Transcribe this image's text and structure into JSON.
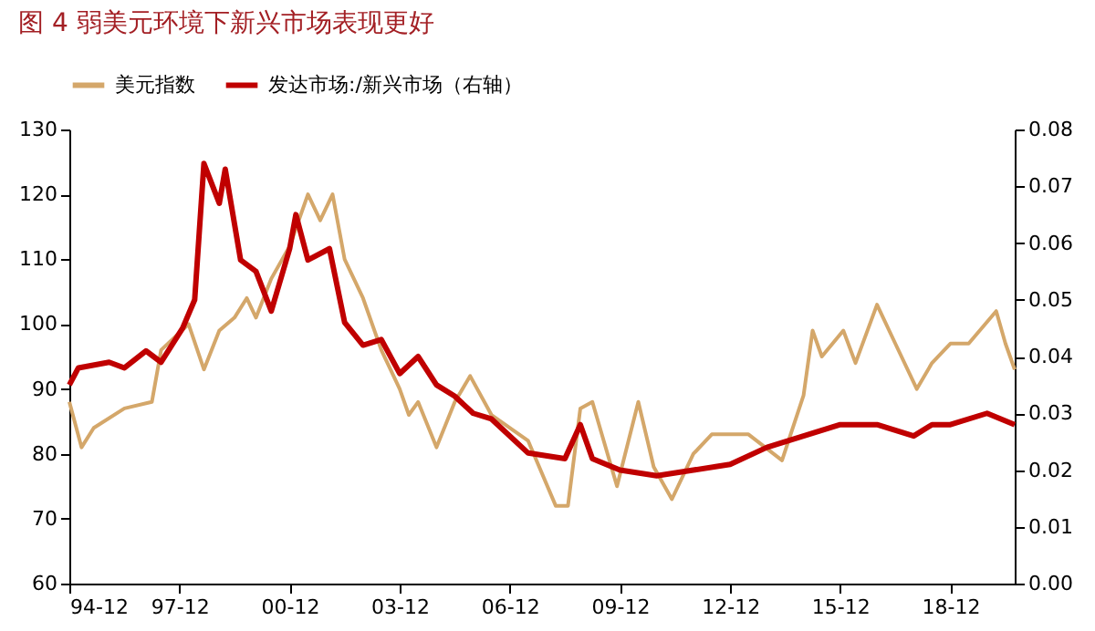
{
  "chart_data": {
    "type": "line",
    "title": "图 4  弱美元环境下新兴市场表现更好",
    "legend": "top",
    "grid": false,
    "line_style": "solid",
    "xlim": [
      "1994-12",
      "2020-09"
    ],
    "xticks": [
      {
        "value": "1994-12",
        "label": "94-12"
      },
      {
        "value": "1997-12",
        "label": "97-12"
      },
      {
        "value": "2000-12",
        "label": "00-12"
      },
      {
        "value": "2003-12",
        "label": "03-12"
      },
      {
        "value": "2006-12",
        "label": "06-12"
      },
      {
        "value": "2009-12",
        "label": "09-12"
      },
      {
        "value": "2012-12",
        "label": "12-12"
      },
      {
        "value": "2015-12",
        "label": "15-12"
      },
      {
        "value": "2018-12",
        "label": "18-12"
      }
    ],
    "ylim": [
      60,
      130
    ],
    "yticks": [
      60,
      70,
      80,
      90,
      100,
      110,
      120,
      130
    ],
    "y2lim": [
      0,
      0.08
    ],
    "y2ticks": [
      {
        "value": 0,
        "label": "0.00"
      },
      {
        "value": 0.01,
        "label": "0.01"
      },
      {
        "value": 0.02,
        "label": "0.02"
      },
      {
        "value": 0.03,
        "label": "0.03"
      },
      {
        "value": 0.04,
        "label": "0.04"
      },
      {
        "value": 0.05,
        "label": "0.05"
      },
      {
        "value": 0.06,
        "label": "0.06"
      },
      {
        "value": 0.07,
        "label": "0.07"
      },
      {
        "value": 0.08,
        "label": "0.08"
      }
    ],
    "series": [
      {
        "name": "美元指数",
        "color": "#d4a76a",
        "x": [
          "1994-12",
          "1995-04",
          "1995-08",
          "1996-06",
          "1997-03",
          "1997-06",
          "1998-03",
          "1998-08",
          "1999-01",
          "1999-06",
          "1999-10",
          "2000-01",
          "2000-06",
          "2000-12",
          "2001-06",
          "2001-10",
          "2002-02",
          "2002-06",
          "2002-12",
          "2003-06",
          "2003-12",
          "2004-03",
          "2004-06",
          "2004-12",
          "2005-06",
          "2005-11",
          "2006-06",
          "2007-06",
          "2008-03",
          "2008-07",
          "2008-11",
          "2009-03",
          "2009-11",
          "2010-06",
          "2010-11",
          "2011-05",
          "2011-12",
          "2012-06",
          "2013-06",
          "2014-05",
          "2014-12",
          "2015-03",
          "2015-06",
          "2016-01",
          "2016-05",
          "2016-12",
          "2017-06",
          "2018-01",
          "2018-06",
          "2018-12",
          "2019-06",
          "2020-03",
          "2020-06",
          "2020-09"
        ],
        "values": [
          88,
          81,
          84,
          87,
          88,
          96,
          100,
          93,
          99,
          101,
          104,
          101,
          107,
          112,
          120,
          116,
          120,
          110,
          104,
          96,
          90,
          86,
          88,
          81,
          88,
          92,
          86,
          82,
          72,
          72,
          87,
          88,
          75,
          88,
          78,
          73,
          80,
          83,
          83,
          79,
          89,
          99,
          95,
          99,
          94,
          103,
          97,
          90,
          94,
          97,
          97,
          102,
          97,
          93
        ]
      },
      {
        "name": "发达市场:/新兴市场（右轴）",
        "color": "#c00000",
        "axis": "y2",
        "x": [
          "1994-12",
          "1995-03",
          "1996-01",
          "1996-06",
          "1997-01",
          "1997-06",
          "1998-01",
          "1998-05",
          "1998-08",
          "1999-01",
          "1999-03",
          "1999-08",
          "2000-01",
          "2000-06",
          "2000-12",
          "2001-02",
          "2001-06",
          "2002-01",
          "2002-06",
          "2002-12",
          "2003-06",
          "2003-12",
          "2004-06",
          "2004-12",
          "2005-06",
          "2005-12",
          "2006-06",
          "2007-06",
          "2008-06",
          "2008-11",
          "2009-03",
          "2009-12",
          "2010-12",
          "2011-12",
          "2012-12",
          "2013-12",
          "2014-12",
          "2015-12",
          "2016-12",
          "2017-12",
          "2018-06",
          "2018-12",
          "2019-12",
          "2020-09"
        ],
        "values": [
          0.035,
          0.038,
          0.039,
          0.038,
          0.041,
          0.039,
          0.045,
          0.05,
          0.074,
          0.067,
          0.073,
          0.057,
          0.055,
          0.048,
          0.059,
          0.065,
          0.057,
          0.059,
          0.046,
          0.042,
          0.043,
          0.037,
          0.04,
          0.035,
          0.033,
          0.03,
          0.029,
          0.023,
          0.022,
          0.028,
          0.022,
          0.02,
          0.019,
          0.02,
          0.021,
          0.024,
          0.026,
          0.028,
          0.028,
          0.026,
          0.028,
          0.028,
          0.03,
          0.028
        ]
      }
    ]
  }
}
